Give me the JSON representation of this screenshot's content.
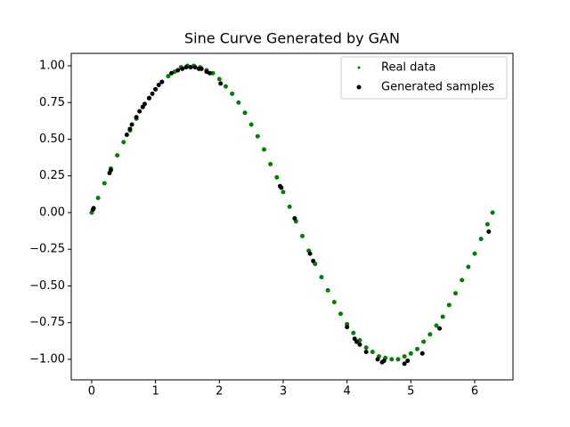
{
  "chart_data": {
    "type": "scatter",
    "title": "Sine Curve Generated by GAN",
    "xlim": [
      -0.32,
      6.6
    ],
    "ylim": [
      -1.14,
      1.085
    ],
    "xticks": [
      0,
      1,
      2,
      3,
      4,
      5,
      6
    ],
    "yticks": [
      {
        "value": 1,
        "label": "1.00"
      },
      {
        "value": 0.75,
        "label": "0.75"
      },
      {
        "value": 0.5,
        "label": "0.50"
      },
      {
        "value": 0.25,
        "label": "0.25"
      },
      {
        "value": 0,
        "label": "0.00"
      },
      {
        "value": -0.25,
        "label": "−0.25"
      },
      {
        "value": -0.5,
        "label": "−0.50"
      },
      {
        "value": -0.75,
        "label": "−0.75"
      },
      {
        "value": -1,
        "label": "−1.00"
      }
    ],
    "legend": "upper right",
    "series": [
      {
        "name": "Real data",
        "color": "#008000",
        "size": 2.5,
        "x": [
          0,
          0.1,
          0.2,
          0.3,
          0.4,
          0.5,
          0.6,
          0.7,
          0.8,
          0.9,
          1.0,
          1.1,
          1.2,
          1.3,
          1.4,
          1.5,
          1.6,
          1.7,
          1.8,
          1.9,
          2.0,
          2.1,
          2.2,
          2.3,
          2.4,
          2.5,
          2.6,
          2.7,
          2.8,
          2.9,
          3.0,
          3.1,
          3.2,
          3.3,
          3.4,
          3.5,
          3.6,
          3.7,
          3.8,
          3.9,
          4.0,
          4.1,
          4.2,
          4.3,
          4.4,
          4.5,
          4.6,
          4.7,
          4.8,
          4.9,
          5.0,
          5.1,
          5.2,
          5.3,
          5.4,
          5.5,
          5.6,
          5.7,
          5.8,
          5.9,
          6.0,
          6.1,
          6.2,
          6.28
        ],
        "values": [
          0,
          0.1,
          0.2,
          0.3,
          0.39,
          0.48,
          0.56,
          0.64,
          0.72,
          0.78,
          0.84,
          0.89,
          0.93,
          0.96,
          0.99,
          1.0,
          1.0,
          0.99,
          0.97,
          0.95,
          0.91,
          0.86,
          0.81,
          0.75,
          0.68,
          0.6,
          0.52,
          0.43,
          0.33,
          0.24,
          0.14,
          0.04,
          -0.06,
          -0.16,
          -0.26,
          -0.35,
          -0.44,
          -0.53,
          -0.61,
          -0.69,
          -0.76,
          -0.82,
          -0.87,
          -0.92,
          -0.95,
          -0.98,
          -0.99,
          -1.0,
          -1.0,
          -0.98,
          -0.96,
          -0.93,
          -0.88,
          -0.83,
          -0.77,
          -0.71,
          -0.63,
          -0.55,
          -0.46,
          -0.37,
          -0.28,
          -0.18,
          -0.08,
          0
        ]
      },
      {
        "name": "Generated samples",
        "color": "#000000",
        "size": 2.5,
        "x": [
          0.02,
          0.03,
          0.28,
          0.3,
          0.55,
          0.6,
          0.63,
          0.7,
          0.75,
          0.8,
          0.83,
          0.9,
          0.95,
          1.0,
          1.05,
          1.1,
          1.25,
          1.35,
          1.42,
          1.48,
          1.55,
          1.62,
          1.68,
          1.72,
          1.8,
          1.85,
          2.02,
          2.95,
          2.97,
          3.18,
          3.42,
          3.47,
          4.0,
          4.12,
          4.15,
          4.2,
          4.3,
          4.48,
          4.55,
          4.58,
          4.9,
          4.95,
          5.18,
          5.45,
          6.22
        ],
        "values": [
          0.02,
          0.03,
          0.27,
          0.29,
          0.53,
          0.57,
          0.6,
          0.65,
          0.69,
          0.72,
          0.74,
          0.78,
          0.81,
          0.84,
          0.87,
          0.89,
          0.95,
          0.97,
          0.98,
          0.99,
          0.99,
          0.99,
          0.98,
          0.98,
          0.96,
          0.95,
          0.88,
          0.18,
          0.17,
          -0.04,
          -0.28,
          -0.33,
          -0.78,
          -0.86,
          -0.88,
          -0.9,
          -0.95,
          -1.0,
          -1.02,
          -1.01,
          -1.03,
          -1.01,
          -0.96,
          -0.79,
          -0.13
        ]
      }
    ]
  }
}
